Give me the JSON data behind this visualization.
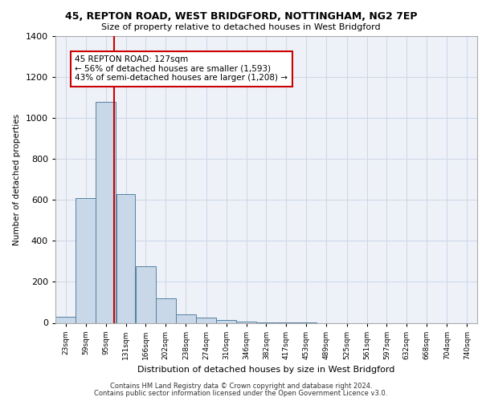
{
  "title1": "45, REPTON ROAD, WEST BRIDGFORD, NOTTINGHAM, NG2 7EP",
  "title2": "Size of property relative to detached houses in West Bridgford",
  "xlabel": "Distribution of detached houses by size in West Bridgford",
  "ylabel": "Number of detached properties",
  "categories": [
    "23sqm",
    "59sqm",
    "95sqm",
    "131sqm",
    "166sqm",
    "202sqm",
    "238sqm",
    "274sqm",
    "310sqm",
    "346sqm",
    "382sqm",
    "417sqm",
    "453sqm",
    "489sqm",
    "525sqm",
    "561sqm",
    "597sqm",
    "632sqm",
    "668sqm",
    "704sqm",
    "740sqm"
  ],
  "bar_edges": [
    23,
    59,
    95,
    131,
    166,
    202,
    238,
    274,
    310,
    346,
    382,
    417,
    453,
    489,
    525,
    561,
    597,
    632,
    668,
    704,
    740
  ],
  "bar_widths": [
    36,
    36,
    36,
    35,
    36,
    36,
    36,
    36,
    36,
    36,
    35,
    36,
    36,
    36,
    36,
    36,
    35,
    36,
    36,
    36,
    36
  ],
  "bar_heights": [
    30,
    610,
    1080,
    630,
    275,
    120,
    40,
    25,
    15,
    5,
    2,
    1,
    1,
    0,
    0,
    0,
    0,
    0,
    0,
    0,
    0
  ],
  "bar_color": "#c8d8e8",
  "bar_edge_color": "#5580a0",
  "grid_color": "#d0d8e8",
  "bg_color": "#eef2f8",
  "property_size": 127,
  "vline_color": "#cc0000",
  "annotation_line1": "45 REPTON ROAD: 127sqm",
  "annotation_line2": "← 56% of detached houses are smaller (1,593)",
  "annotation_line3": "43% of semi-detached houses are larger (1,208) →",
  "annotation_box_color": "#ffffff",
  "annotation_box_edge": "#cc0000",
  "ylim": [
    0,
    1400
  ],
  "footer1": "Contains HM Land Registry data © Crown copyright and database right 2024.",
  "footer2": "Contains public sector information licensed under the Open Government Licence v3.0."
}
